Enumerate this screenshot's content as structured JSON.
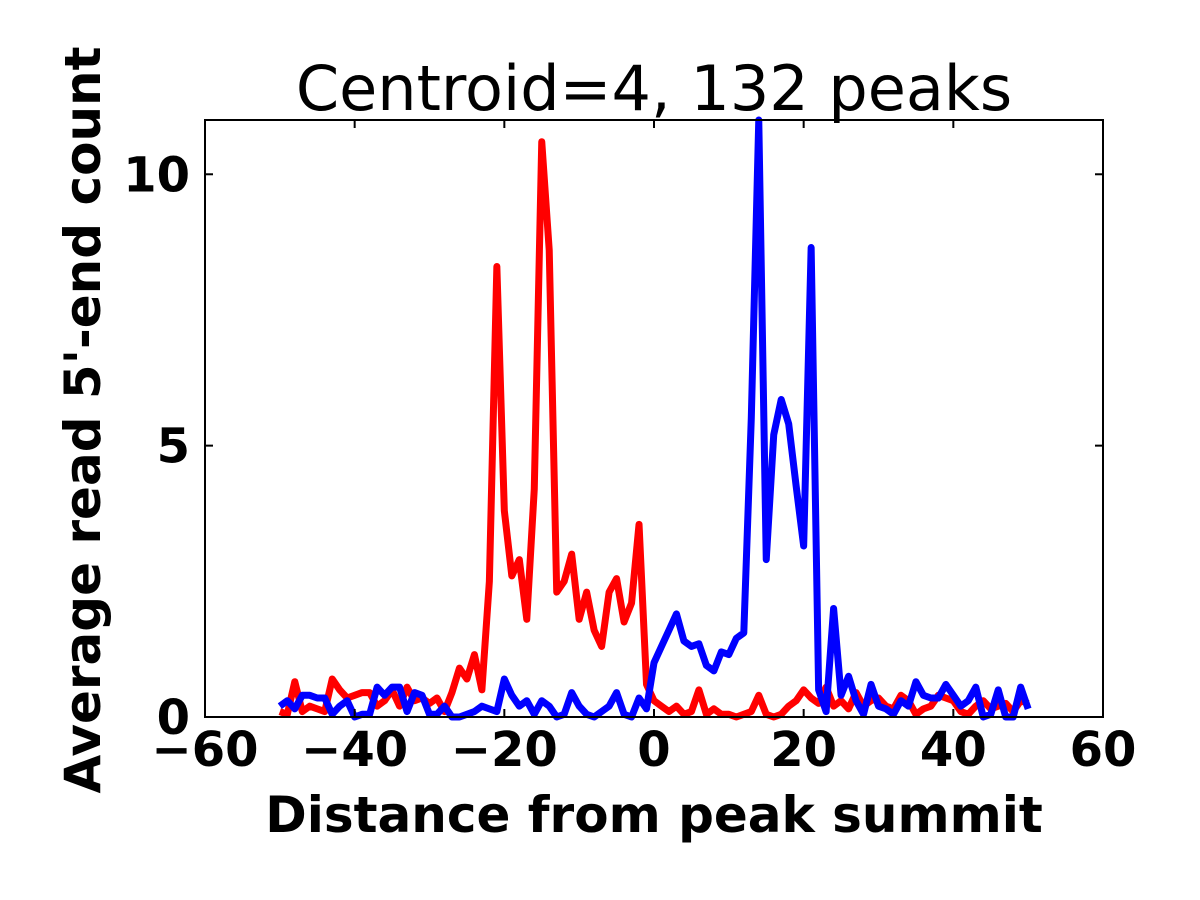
{
  "chart_data": {
    "type": "line",
    "title": "Centroid=4, 132 peaks",
    "xlabel": "Distance from peak summit",
    "ylabel": "Average read 5'-end count",
    "xlim": [
      -60,
      60
    ],
    "ylim": [
      0,
      11
    ],
    "x_ticks": [
      -60,
      -40,
      -20,
      0,
      20,
      40,
      60
    ],
    "x_tick_labels": [
      "−60",
      "−40",
      "−20",
      "0",
      "20",
      "40",
      "60"
    ],
    "y_ticks": [
      0,
      5,
      10
    ],
    "y_tick_labels": [
      "0",
      "5",
      "10"
    ],
    "grid": false,
    "legend": null,
    "x": [
      -50,
      -49,
      -48,
      -47,
      -46,
      -45,
      -44,
      -43,
      -42,
      -41,
      -40,
      -39,
      -38,
      -37,
      -36,
      -35,
      -34,
      -33,
      -32,
      -31,
      -30,
      -29,
      -28,
      -27,
      -26,
      -25,
      -24,
      -23,
      -22,
      -21,
      -20,
      -19,
      -18,
      -17,
      -16,
      -15,
      -14,
      -13,
      -12,
      -11,
      -10,
      -9,
      -8,
      -7,
      -6,
      -5,
      -4,
      -3,
      -2,
      -1,
      0,
      1,
      2,
      3,
      4,
      5,
      6,
      7,
      8,
      9,
      10,
      11,
      12,
      13,
      14,
      15,
      16,
      17,
      18,
      19,
      20,
      21,
      22,
      23,
      24,
      25,
      26,
      27,
      28,
      29,
      30,
      31,
      32,
      33,
      34,
      35,
      36,
      37,
      38,
      39,
      40,
      41,
      42,
      43,
      44,
      45,
      46,
      47,
      48,
      49,
      50
    ],
    "series": [
      {
        "color": "#ff0000",
        "values": [
          0.1,
          0.05,
          0.65,
          0.1,
          0.2,
          0.15,
          0.1,
          0.7,
          0.5,
          0.35,
          0.4,
          0.45,
          0.45,
          0.2,
          0.3,
          0.5,
          0.2,
          0.55,
          0.3,
          0.35,
          0.25,
          0.35,
          0.1,
          0.45,
          0.9,
          0.7,
          1.15,
          0.5,
          2.5,
          8.3,
          3.8,
          2.6,
          2.9,
          1.8,
          4.2,
          10.6,
          8.6,
          2.3,
          2.5,
          3.0,
          1.8,
          2.3,
          1.6,
          1.3,
          2.3,
          2.55,
          1.75,
          2.1,
          3.55,
          0.6,
          0.3,
          0.2,
          0.1,
          0.2,
          0.05,
          0.1,
          0.5,
          0.05,
          0.15,
          0.05,
          0.05,
          0.0,
          0.05,
          0.1,
          0.4,
          0.05,
          0.0,
          0.05,
          0.2,
          0.3,
          0.5,
          0.35,
          0.25,
          0.55,
          0.2,
          0.3,
          0.15,
          0.45,
          0.2,
          0.3,
          0.35,
          0.2,
          0.15,
          0.4,
          0.3,
          0.05,
          0.15,
          0.2,
          0.4,
          0.35,
          0.3,
          0.1,
          0.05,
          0.2,
          0.3,
          0.15,
          0.2,
          0.25,
          0.1,
          0.3,
          0.25
        ]
      },
      {
        "color": "#0000ff",
        "values": [
          0.2,
          0.3,
          0.15,
          0.4,
          0.4,
          0.35,
          0.35,
          0.05,
          0.2,
          0.3,
          0.0,
          0.05,
          0.05,
          0.55,
          0.4,
          0.55,
          0.55,
          0.1,
          0.45,
          0.4,
          0.05,
          0.05,
          0.2,
          0.0,
          0.0,
          0.05,
          0.1,
          0.2,
          0.15,
          0.1,
          0.7,
          0.4,
          0.2,
          0.3,
          0.05,
          0.3,
          0.2,
          0.0,
          0.05,
          0.45,
          0.2,
          0.05,
          0.0,
          0.1,
          0.2,
          0.45,
          0.05,
          0.0,
          0.35,
          0.15,
          1.0,
          1.3,
          1.6,
          1.9,
          1.4,
          1.3,
          1.35,
          0.95,
          0.85,
          1.2,
          1.15,
          1.45,
          1.55,
          5.5,
          11.0,
          2.9,
          5.2,
          5.85,
          5.4,
          4.25,
          3.15,
          8.65,
          0.5,
          0.1,
          2.0,
          0.4,
          0.75,
          0.3,
          0.05,
          0.6,
          0.2,
          0.15,
          0.05,
          0.3,
          0.2,
          0.65,
          0.4,
          0.35,
          0.35,
          0.6,
          0.4,
          0.2,
          0.3,
          0.55,
          0.0,
          0.05,
          0.5,
          0.0,
          0.0,
          0.55,
          0.15
        ]
      }
    ]
  }
}
